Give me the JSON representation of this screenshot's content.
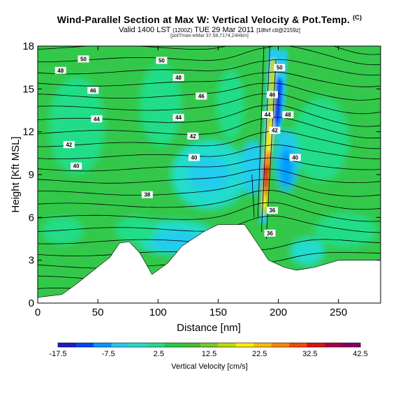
{
  "header": {
    "title": "Wind-Parallel Section at Max W: Vertical Velocity & Pot.Temp.",
    "title_tag": "(C)",
    "subtitle": "Valid 1400 LST",
    "subtitle_small1": "(1200Z)",
    "subtitle_main2": "TUE 29 Mar 2011",
    "subtitle_small2": "[18hrf ctl@2159z]",
    "sub2": "[potTmax-wMar 37.58,7174,24Hkm]"
  },
  "chart_data": {
    "type": "heatmap",
    "title": "Wind-Parallel Section at Max W: Vertical Velocity & Pot.Temp.",
    "xlabel": "Distance [nm]",
    "ylabel": "Height [Kft MSL]",
    "xlim": [
      0,
      285
    ],
    "ylim": [
      0,
      18
    ],
    "xticks": [
      "0",
      "50",
      "100",
      "150",
      "200",
      "250"
    ],
    "yticks": [
      "0",
      "3",
      "6",
      "9",
      "12",
      "15",
      "18"
    ],
    "grid": false,
    "colorbar": {
      "label": "Vertical Velocity [cm/s]",
      "tick_labels": [
        "-17.5",
        "-7.5",
        "2.5",
        "12.5",
        "22.5",
        "32.5",
        "42.5"
      ],
      "ticks": [
        -17.5,
        -7.5,
        2.5,
        12.5,
        22.5,
        32.5,
        42.5
      ],
      "range": [
        -17.5,
        42.5
      ],
      "colors": [
        "#1a1acc",
        "#0044ff",
        "#0099ff",
        "#22ccee",
        "#22ddcc",
        "#22dd88",
        "#22cc44",
        "#44bb33",
        "#77cc22",
        "#bbdd00",
        "#ffee00",
        "#ffbb00",
        "#ff8800",
        "#ff4400",
        "#dd1111",
        "#aa0044",
        "#880066"
      ]
    },
    "contour_labels": [
      {
        "text": "50",
        "x": 38,
        "y": 17.1
      },
      {
        "text": "50",
        "x": 103,
        "y": 17.0
      },
      {
        "text": "48",
        "x": 19,
        "y": 16.3
      },
      {
        "text": "48",
        "x": 117,
        "y": 15.8
      },
      {
        "text": "46",
        "x": 46,
        "y": 14.9
      },
      {
        "text": "46",
        "x": 136,
        "y": 14.5
      },
      {
        "text": "44",
        "x": 49,
        "y": 12.9
      },
      {
        "text": "44",
        "x": 117,
        "y": 13.0
      },
      {
        "text": "42",
        "x": 26,
        "y": 11.1
      },
      {
        "text": "42",
        "x": 129,
        "y": 11.7
      },
      {
        "text": "40",
        "x": 32,
        "y": 9.6
      },
      {
        "text": "40",
        "x": 130,
        "y": 10.2
      },
      {
        "text": "38",
        "x": 91,
        "y": 7.6
      },
      {
        "text": "50",
        "x": 201,
        "y": 16.5
      },
      {
        "text": "46",
        "x": 195,
        "y": 14.6
      },
      {
        "text": "44",
        "x": 191,
        "y": 13.2
      },
      {
        "text": "48",
        "x": 208,
        "y": 13.2
      },
      {
        "text": "42",
        "x": 197,
        "y": 12.1
      },
      {
        "text": "40",
        "x": 214,
        "y": 10.2
      },
      {
        "text": "36",
        "x": 195,
        "y": 6.5
      },
      {
        "text": "36",
        "x": 193,
        "y": 4.9
      }
    ],
    "terrain_top": [
      {
        "x": 0,
        "y": 0.4
      },
      {
        "x": 20,
        "y": 0.6
      },
      {
        "x": 30,
        "y": 1.2
      },
      {
        "x": 45,
        "y": 2.2
      },
      {
        "x": 60,
        "y": 3.2
      },
      {
        "x": 68,
        "y": 4.2
      },
      {
        "x": 76,
        "y": 4.3
      },
      {
        "x": 85,
        "y": 3.5
      },
      {
        "x": 95,
        "y": 2.0
      },
      {
        "x": 108,
        "y": 2.8
      },
      {
        "x": 120,
        "y": 4.0
      },
      {
        "x": 138,
        "y": 5.0
      },
      {
        "x": 150,
        "y": 5.5
      },
      {
        "x": 172,
        "y": 5.5
      },
      {
        "x": 180,
        "y": 4.5
      },
      {
        "x": 192,
        "y": 3.0
      },
      {
        "x": 205,
        "y": 2.5
      },
      {
        "x": 215,
        "y": 2.3
      },
      {
        "x": 230,
        "y": 2.5
      },
      {
        "x": 250,
        "y": 3.0
      },
      {
        "x": 285,
        "y": 3.0
      }
    ]
  }
}
